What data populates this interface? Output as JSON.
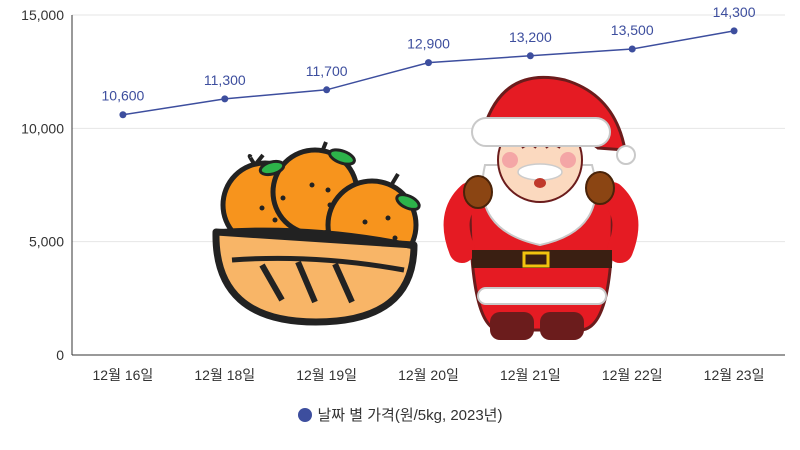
{
  "chart_data": {
    "type": "line",
    "categories": [
      "12월 16일",
      "12월 18일",
      "12월 19일",
      "12월 20일",
      "12월 21일",
      "12월 22일",
      "12월 23일"
    ],
    "series": [
      {
        "name": "날짜 별 가격(원/5kg, 2023년)",
        "values": [
          10600,
          11300,
          11700,
          12900,
          13200,
          13500,
          14300
        ],
        "data_labels": [
          "10,600",
          "11,300",
          "11,700",
          "12,900",
          "13,200",
          "13,500",
          "14,300"
        ]
      }
    ],
    "ylim": [
      0,
      15000
    ],
    "y_ticks": [
      0,
      5000,
      10000,
      15000
    ],
    "y_tick_labels": [
      "0",
      "5,000",
      "10,000",
      "15,000"
    ],
    "grid": true,
    "legend_position": "bottom-center",
    "colors": {
      "line": "#3d4e9e",
      "label": "#3d4e9e",
      "legend_dot": "#3d4e9e",
      "grid": "#e6e6e6",
      "axis": "#333333"
    },
    "illustrations": [
      "tangerine-basket",
      "santa-claus"
    ]
  }
}
